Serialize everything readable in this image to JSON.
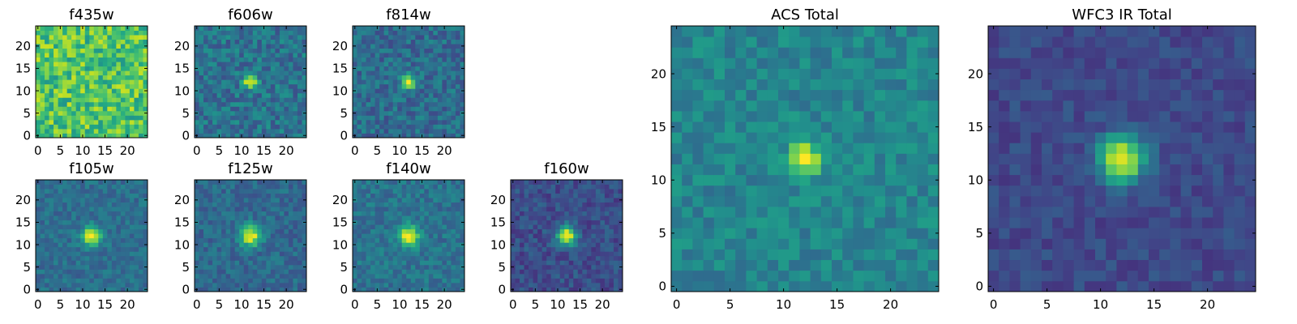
{
  "chart_data": {
    "type": "heatmap",
    "colormap": "viridis",
    "grid": false,
    "panels": [
      {
        "title": "f435w",
        "shape": [
          25,
          25
        ],
        "source": null,
        "noise": 0.2,
        "baseline": 0.72,
        "xlim": [
          0,
          24
        ],
        "ylim": [
          0,
          24
        ],
        "xticks": [
          "0",
          "5",
          "10",
          "15",
          "20"
        ],
        "yticks": [
          "0",
          "5",
          "10",
          "15",
          "20"
        ],
        "seed": 11
      },
      {
        "title": "f606w",
        "shape": [
          25,
          25
        ],
        "source": {
          "x": 12,
          "y": 12,
          "peak": 1.0,
          "sigma": 1.1
        },
        "noise": 0.14,
        "baseline": 0.38,
        "xlim": [
          0,
          24
        ],
        "ylim": [
          0,
          24
        ],
        "xticks": [
          "0",
          "5",
          "10",
          "15",
          "20"
        ],
        "yticks": [
          "0",
          "5",
          "10",
          "15",
          "20"
        ],
        "seed": 23
      },
      {
        "title": "f814w",
        "shape": [
          25,
          25
        ],
        "source": {
          "x": 12,
          "y": 12,
          "peak": 1.0,
          "sigma": 1.1
        },
        "noise": 0.13,
        "baseline": 0.35,
        "xlim": [
          0,
          24
        ],
        "ylim": [
          0,
          24
        ],
        "xticks": [
          "0",
          "5",
          "10",
          "15",
          "20"
        ],
        "yticks": [
          "0",
          "5",
          "10",
          "15",
          "20"
        ],
        "seed": 37
      },
      {
        "title": "f105w",
        "shape": [
          25,
          25
        ],
        "source": {
          "x": 12,
          "y": 12,
          "peak": 1.0,
          "sigma": 1.5
        },
        "noise": 0.09,
        "baseline": 0.36,
        "xlim": [
          0,
          24
        ],
        "ylim": [
          0,
          24
        ],
        "xticks": [
          "0",
          "5",
          "10",
          "15",
          "20"
        ],
        "yticks": [
          "0",
          "5",
          "10",
          "15",
          "20"
        ],
        "seed": 41
      },
      {
        "title": "f125w",
        "shape": [
          25,
          25
        ],
        "source": {
          "x": 12,
          "y": 12,
          "peak": 1.0,
          "sigma": 1.6
        },
        "noise": 0.1,
        "baseline": 0.34,
        "xlim": [
          0,
          24
        ],
        "ylim": [
          0,
          24
        ],
        "xticks": [
          "0",
          "5",
          "10",
          "15",
          "20"
        ],
        "yticks": [
          "0",
          "5",
          "10",
          "15",
          "20"
        ],
        "seed": 53
      },
      {
        "title": "f140w",
        "shape": [
          25,
          25
        ],
        "source": {
          "x": 12,
          "y": 12,
          "peak": 1.0,
          "sigma": 1.6
        },
        "noise": 0.1,
        "baseline": 0.38,
        "xlim": [
          0,
          24
        ],
        "ylim": [
          0,
          24
        ],
        "xticks": [
          "0",
          "5",
          "10",
          "15",
          "20"
        ],
        "yticks": [
          "0",
          "5",
          "10",
          "15",
          "20"
        ],
        "seed": 67
      },
      {
        "title": "f160w",
        "shape": [
          25,
          25
        ],
        "source": {
          "x": 12,
          "y": 12,
          "peak": 1.0,
          "sigma": 1.5
        },
        "noise": 0.1,
        "baseline": 0.24,
        "xlim": [
          0,
          24
        ],
        "ylim": [
          0,
          24
        ],
        "xticks": [
          "0",
          "5",
          "10",
          "15",
          "20"
        ],
        "yticks": [
          "0",
          "5",
          "10",
          "15",
          "20"
        ],
        "seed": 79
      },
      {
        "title": "ACS Total",
        "shape": [
          25,
          25
        ],
        "source": {
          "x": 12,
          "y": 12,
          "peak": 1.0,
          "sigma": 1.1
        },
        "noise": 0.1,
        "baseline": 0.45,
        "xlim": [
          0,
          24
        ],
        "ylim": [
          0,
          24
        ],
        "xticks": [
          "0",
          "5",
          "10",
          "15",
          "20"
        ],
        "yticks": [
          "0",
          "5",
          "10",
          "15",
          "20"
        ],
        "seed": 97
      },
      {
        "title": "WFC3 IR Total",
        "shape": [
          25,
          25
        ],
        "source": {
          "x": 12,
          "y": 12,
          "peak": 1.0,
          "sigma": 1.5
        },
        "noise": 0.07,
        "baseline": 0.22,
        "xlim": [
          0,
          24
        ],
        "ylim": [
          0,
          24
        ],
        "xticks": [
          "0",
          "5",
          "10",
          "15",
          "20"
        ],
        "yticks": [
          "0",
          "5",
          "10",
          "15",
          "20"
        ],
        "seed": 113
      }
    ]
  }
}
